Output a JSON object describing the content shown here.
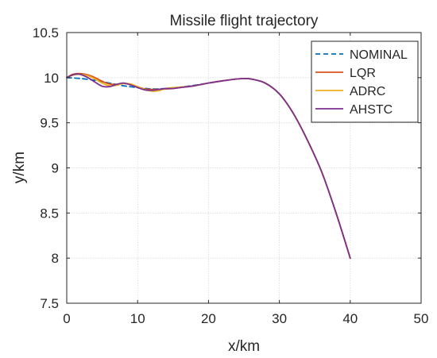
{
  "chart_data": {
    "type": "line",
    "title": "Missile flight trajectory",
    "xlabel": "x/km",
    "ylabel": "y/km",
    "xlim": [
      0,
      50
    ],
    "ylim": [
      7.5,
      10.5
    ],
    "xticks": [
      0,
      10,
      20,
      30,
      40,
      50
    ],
    "yticks": [
      7.5,
      8,
      8.5,
      9,
      9.5,
      10,
      10.5
    ],
    "xtick_labels": [
      "0",
      "10",
      "20",
      "30",
      "40",
      "50"
    ],
    "ytick_labels": [
      "7.5",
      "8",
      "8.5",
      "9",
      "9.5",
      "10",
      "10.5"
    ],
    "grid": true,
    "legend_position": "top-right",
    "series": [
      {
        "name": "NOMINAL",
        "color": "#0072BD",
        "dash": "dashed",
        "x": [
          0,
          2,
          4,
          6,
          8,
          10,
          12,
          14,
          16,
          18,
          20,
          22,
          24,
          25,
          26,
          28,
          30,
          32,
          34,
          36,
          38,
          40
        ],
        "y": [
          10.0,
          9.99,
          9.97,
          9.94,
          9.91,
          9.89,
          9.875,
          9.88,
          9.895,
          9.915,
          9.94,
          9.965,
          9.985,
          9.99,
          9.985,
          9.94,
          9.82,
          9.6,
          9.3,
          8.95,
          8.5,
          8.0
        ]
      },
      {
        "name": "LQR",
        "color": "#D95319",
        "dash": "solid",
        "x": [
          0,
          0.5,
          1,
          2,
          3,
          4,
          5,
          6,
          7,
          8,
          9,
          10,
          11,
          12,
          13,
          14,
          15,
          16,
          18,
          20,
          22,
          24,
          25,
          26,
          28,
          30,
          32,
          34,
          36,
          38,
          40
        ],
        "y": [
          10.0,
          10.025,
          10.04,
          10.045,
          10.03,
          10.0,
          9.96,
          9.93,
          9.925,
          9.935,
          9.925,
          9.9,
          9.875,
          9.87,
          9.87,
          9.875,
          9.88,
          9.89,
          9.91,
          9.94,
          9.965,
          9.985,
          9.99,
          9.985,
          9.94,
          9.82,
          9.6,
          9.3,
          8.95,
          8.5,
          8.0
        ]
      },
      {
        "name": "ADRC",
        "color": "#EDB120",
        "dash": "solid",
        "x": [
          0,
          1,
          2,
          3,
          4,
          5,
          6,
          7,
          8,
          9,
          10,
          11,
          12,
          13,
          14,
          15,
          16,
          18,
          20,
          22,
          24,
          25,
          26,
          28,
          30,
          32,
          34,
          36,
          38,
          40
        ],
        "y": [
          10.0,
          10.03,
          10.035,
          10.02,
          9.985,
          9.94,
          9.91,
          9.915,
          9.935,
          9.93,
          9.9,
          9.87,
          9.85,
          9.855,
          9.88,
          9.89,
          9.895,
          9.91,
          9.94,
          9.965,
          9.985,
          9.99,
          9.985,
          9.94,
          9.82,
          9.6,
          9.3,
          8.95,
          8.5,
          8.0
        ]
      },
      {
        "name": "AHSTC",
        "color": "#7E2F8E",
        "dash": "solid",
        "x": [
          0,
          0.5,
          1,
          1.5,
          2,
          3,
          4,
          5,
          6,
          7,
          8,
          9,
          10,
          11,
          12,
          13,
          14,
          15,
          16,
          18,
          20,
          22,
          24,
          25,
          26,
          28,
          30,
          32,
          34,
          36,
          38,
          40
        ],
        "y": [
          10.0,
          10.02,
          10.035,
          10.04,
          10.035,
          10.0,
          9.95,
          9.905,
          9.9,
          9.925,
          9.94,
          9.92,
          9.89,
          9.865,
          9.86,
          9.87,
          9.88,
          9.88,
          9.89,
          9.91,
          9.94,
          9.965,
          9.985,
          9.99,
          9.985,
          9.94,
          9.82,
          9.6,
          9.3,
          8.95,
          8.5,
          8.0
        ]
      }
    ]
  }
}
